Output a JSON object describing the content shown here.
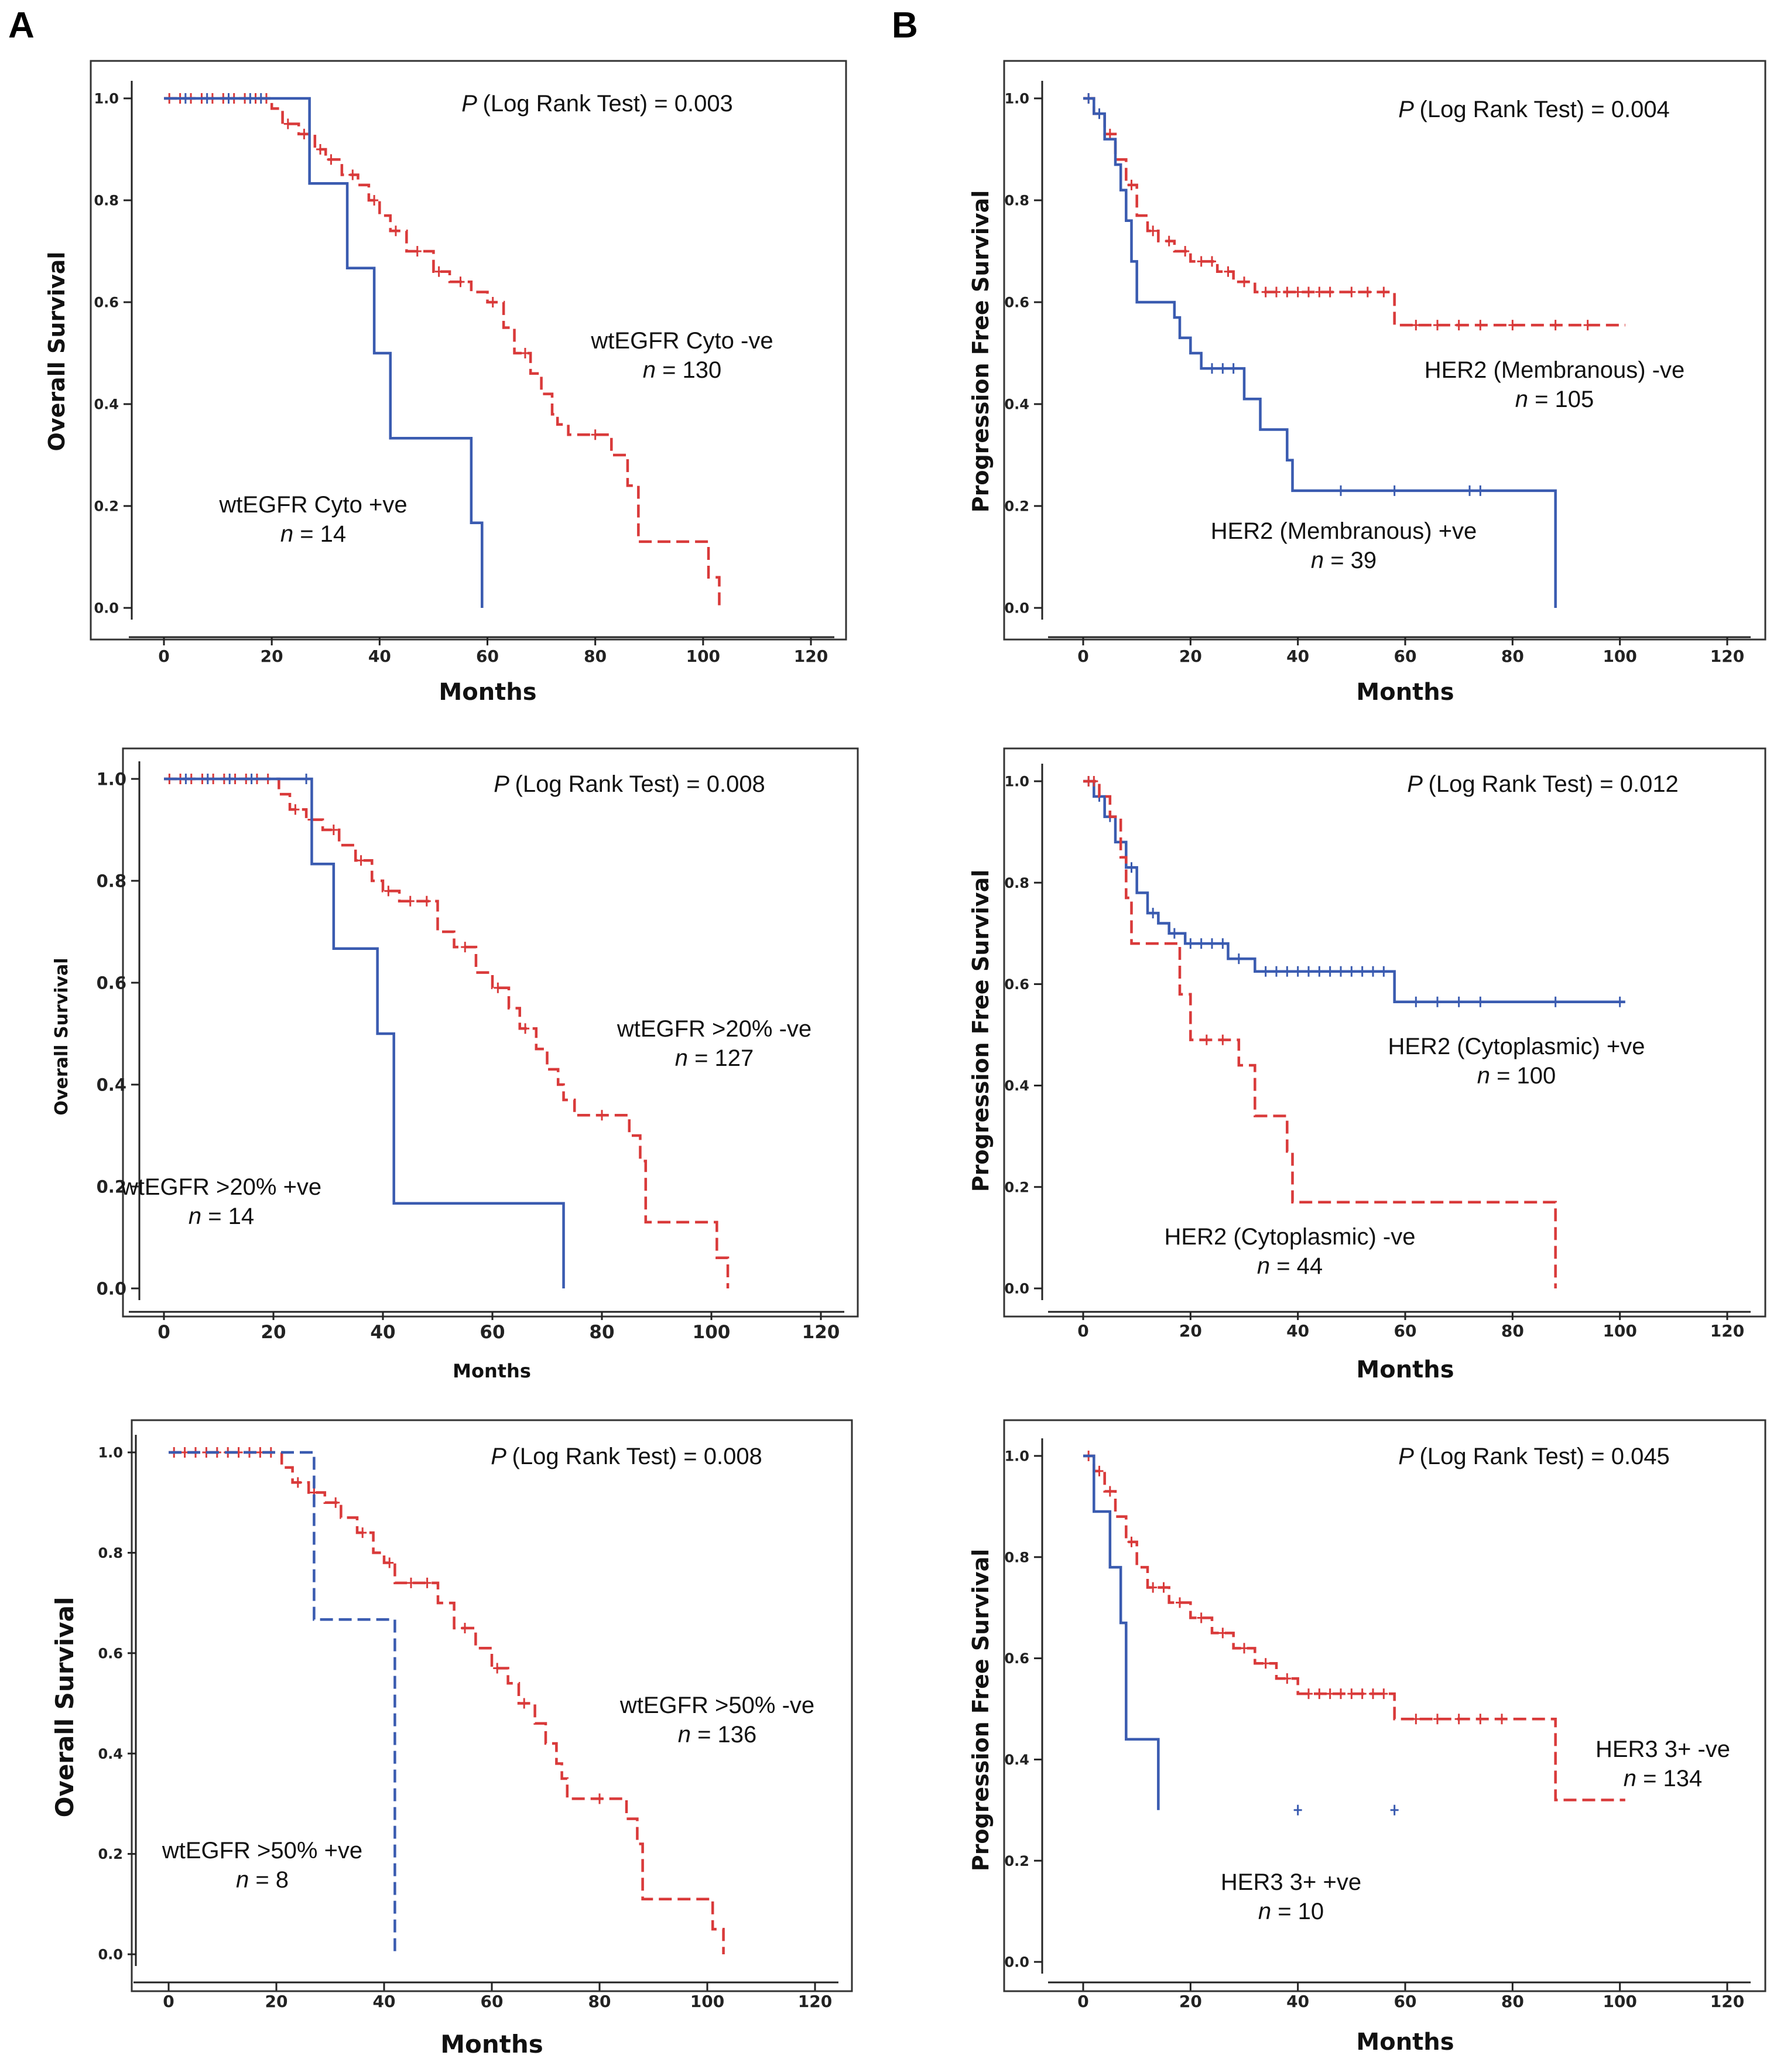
{
  "figure": {
    "panel_letters": [
      "A",
      "B"
    ],
    "colors": {
      "red": "#D93A3A",
      "blue": "#3A5BB0"
    }
  },
  "chart_data": [
    {
      "type": "line",
      "subtype": "kaplan-meier",
      "xlabel": "Months",
      "ylabel": "Overall Survival",
      "xlim": [
        0,
        120
      ],
      "ylim": [
        0,
        1
      ],
      "xticks": [
        "0",
        "20",
        "40",
        "60",
        "80",
        "100",
        "120"
      ],
      "yticks": [
        "0.0",
        "0.2",
        "0.4",
        "0.6",
        "0.8",
        "1.0"
      ],
      "pvalue": {
        "p": "P",
        "text": "(Log Rank Test) = 0.003"
      },
      "series": [
        {
          "name": "wtEGFR Cyto -ve",
          "n_label": "n = 130",
          "color": "red",
          "dashed": true,
          "x": [
            0,
            20,
            22,
            25,
            28,
            30,
            33,
            36,
            38,
            40,
            42,
            45,
            50,
            53,
            57,
            60,
            63,
            65,
            68,
            70,
            72,
            73,
            75,
            83,
            86,
            88,
            101,
            103
          ],
          "y": [
            1.0,
            0.98,
            0.95,
            0.93,
            0.9,
            0.88,
            0.85,
            0.83,
            0.8,
            0.77,
            0.74,
            0.7,
            0.66,
            0.64,
            0.62,
            0.6,
            0.55,
            0.5,
            0.46,
            0.42,
            0.38,
            0.36,
            0.34,
            0.3,
            0.24,
            0.13,
            0.06,
            0.0
          ],
          "censor_x": [
            1,
            3,
            5,
            7,
            9,
            11,
            13,
            15,
            17,
            19,
            23,
            26,
            29,
            31,
            35,
            39,
            43,
            47,
            51,
            55,
            61,
            67,
            80
          ]
        },
        {
          "name": "wtEGFR Cyto +ve",
          "n_label": "n = 14",
          "color": "blue",
          "dashed": false,
          "x": [
            0,
            27,
            34,
            39,
            42,
            57,
            59
          ],
          "y": [
            1.0,
            0.833,
            0.667,
            0.5,
            0.333,
            0.167,
            0.0
          ],
          "censor_x": [
            4,
            8,
            12,
            16,
            18
          ]
        }
      ]
    },
    {
      "type": "line",
      "subtype": "kaplan-meier",
      "xlabel": "Months",
      "ylabel": "Progression Free Survival",
      "xlim": [
        0,
        120
      ],
      "ylim": [
        0,
        1
      ],
      "xticks": [
        "0",
        "20",
        "40",
        "60",
        "80",
        "100",
        "120"
      ],
      "yticks": [
        "0.0",
        "0.2",
        "0.4",
        "0.6",
        "0.8",
        "1.0"
      ],
      "pvalue": {
        "p": "P",
        "text": "(Log Rank Test) = 0.004"
      },
      "series": [
        {
          "name": "HER2 (Membranous) -ve",
          "n_label": "n = 105",
          "color": "red",
          "dashed": true,
          "x": [
            0,
            2,
            4,
            6,
            8,
            10,
            12,
            14,
            17,
            20,
            25,
            28,
            32,
            58,
            101
          ],
          "y": [
            1.0,
            0.97,
            0.93,
            0.88,
            0.83,
            0.77,
            0.74,
            0.72,
            0.7,
            0.68,
            0.66,
            0.64,
            0.62,
            0.555,
            0.555
          ],
          "censor_x": [
            1,
            3,
            5,
            9,
            13,
            16,
            19,
            22,
            24,
            27,
            30,
            34,
            36,
            38,
            40,
            42,
            44,
            46,
            50,
            53,
            56,
            62,
            66,
            70,
            74,
            80,
            88,
            94
          ]
        },
        {
          "name": "HER2 (Membranous) +ve",
          "n_label": "n = 39",
          "color": "blue",
          "dashed": false,
          "x": [
            0,
            2,
            4,
            6,
            7,
            8,
            9,
            10,
            17,
            18,
            20,
            22,
            30,
            33,
            38,
            39,
            88
          ],
          "y": [
            1.0,
            0.97,
            0.92,
            0.87,
            0.82,
            0.76,
            0.68,
            0.6,
            0.57,
            0.53,
            0.5,
            0.47,
            0.41,
            0.35,
            0.29,
            0.23,
            0.0
          ],
          "censor_x": [
            1,
            3,
            24,
            26,
            28,
            48,
            58,
            72,
            74
          ]
        }
      ]
    },
    {
      "type": "line",
      "subtype": "kaplan-meier",
      "xlabel": "Months",
      "ylabel": "Overall Survival",
      "xlim": [
        0,
        120
      ],
      "ylim": [
        0,
        1
      ],
      "xticks": [
        "0",
        "20",
        "40",
        "60",
        "80",
        "100",
        "120"
      ],
      "yticks": [
        "0.0",
        "0.2",
        "0.4",
        "0.6",
        "0.8",
        "1.0"
      ],
      "pvalue": {
        "p": "P",
        "text": "(Log Rank Test) = 0.008"
      },
      "series": [
        {
          "name": "wtEGFR >20% -ve",
          "n_label": "n = 127",
          "color": "red",
          "dashed": true,
          "x": [
            0,
            21,
            23,
            26,
            29,
            32,
            35,
            38,
            40,
            43,
            50,
            53,
            57,
            60,
            63,
            65,
            68,
            70,
            72,
            73,
            75,
            85,
            87,
            88,
            101,
            103
          ],
          "y": [
            1.0,
            0.97,
            0.94,
            0.92,
            0.9,
            0.87,
            0.84,
            0.8,
            0.78,
            0.76,
            0.7,
            0.67,
            0.62,
            0.59,
            0.55,
            0.51,
            0.47,
            0.43,
            0.4,
            0.37,
            0.34,
            0.3,
            0.25,
            0.13,
            0.06,
            0.0
          ],
          "censor_x": [
            1,
            3,
            5,
            7,
            9,
            11,
            13,
            15,
            17,
            19,
            24,
            27,
            31,
            36,
            41,
            45,
            48,
            55,
            61,
            66,
            80
          ]
        },
        {
          "name": "wtEGFR >20% +ve",
          "n_label": "n = 14",
          "color": "blue",
          "dashed": false,
          "x": [
            0,
            27,
            31,
            39,
            42,
            73
          ],
          "y": [
            1.0,
            0.833,
            0.667,
            0.5,
            0.167,
            0.0
          ],
          "censor_x": [
            4,
            8,
            12,
            16,
            26
          ]
        }
      ]
    },
    {
      "type": "line",
      "subtype": "kaplan-meier",
      "xlabel": "Months",
      "ylabel": "Progression Free Survival",
      "xlim": [
        0,
        120
      ],
      "ylim": [
        0,
        1
      ],
      "xticks": [
        "0",
        "20",
        "40",
        "60",
        "80",
        "100",
        "120"
      ],
      "yticks": [
        "0.0",
        "0.2",
        "0.4",
        "0.6",
        "0.8",
        "1.0"
      ],
      "pvalue": {
        "p": "P",
        "text": "(Log Rank Test) = 0.012"
      },
      "series": [
        {
          "name": "HER2 (Cytoplasmic) +ve",
          "n_label": "n = 100",
          "color": "blue",
          "dashed": false,
          "x": [
            0,
            2,
            4,
            6,
            8,
            10,
            12,
            14,
            16,
            19,
            27,
            32,
            58,
            101
          ],
          "y": [
            1.0,
            0.97,
            0.93,
            0.88,
            0.83,
            0.78,
            0.74,
            0.72,
            0.7,
            0.68,
            0.65,
            0.625,
            0.565,
            0.565
          ],
          "censor_x": [
            1,
            3,
            5,
            9,
            13,
            17,
            20,
            22,
            24,
            26,
            29,
            34,
            36,
            38,
            40,
            42,
            44,
            46,
            48,
            50,
            52,
            54,
            56,
            62,
            66,
            70,
            74,
            88,
            100
          ]
        },
        {
          "name": "HER2 (Cytoplasmic) -ve",
          "n_label": "n = 44",
          "color": "red",
          "dashed": true,
          "x": [
            0,
            3,
            5,
            7,
            8,
            9,
            18,
            20,
            29,
            32,
            38,
            39,
            88
          ],
          "y": [
            1.0,
            0.97,
            0.93,
            0.85,
            0.77,
            0.68,
            0.58,
            0.49,
            0.44,
            0.34,
            0.27,
            0.17,
            0.0
          ],
          "censor_x": [
            1,
            2,
            23,
            26
          ]
        }
      ]
    },
    {
      "type": "line",
      "subtype": "kaplan-meier",
      "xlabel": "Months",
      "ylabel": "Overall Survival",
      "xlim": [
        0,
        120
      ],
      "ylim": [
        0,
        1
      ],
      "xticks": [
        "0",
        "20",
        "40",
        "60",
        "80",
        "100",
        "120"
      ],
      "yticks": [
        "0.0",
        "0.2",
        "0.4",
        "0.6",
        "0.8",
        "1.0"
      ],
      "pvalue": {
        "p": "P",
        "text": "(Log Rank Test) = 0.008"
      },
      "series": [
        {
          "name": "wtEGFR >50% -ve",
          "n_label": "n = 136",
          "color": "red",
          "dashed": true,
          "x": [
            0,
            21,
            23,
            26,
            29,
            32,
            35,
            38,
            40,
            42,
            50,
            53,
            57,
            60,
            63,
            65,
            68,
            70,
            72,
            73,
            74,
            85,
            87,
            88,
            101,
            103
          ],
          "y": [
            1.0,
            0.97,
            0.94,
            0.92,
            0.9,
            0.87,
            0.84,
            0.8,
            0.78,
            0.74,
            0.7,
            0.65,
            0.61,
            0.57,
            0.54,
            0.5,
            0.46,
            0.42,
            0.38,
            0.35,
            0.31,
            0.27,
            0.22,
            0.11,
            0.05,
            0.0
          ],
          "censor_x": [
            1,
            3,
            5,
            7,
            9,
            11,
            13,
            15,
            17,
            19,
            24,
            27,
            31,
            36,
            41,
            45,
            48,
            55,
            61,
            66,
            80
          ]
        },
        {
          "name": "wtEGFR >50% +ve",
          "n_label": "n = 8",
          "color": "blue",
          "dashed": true,
          "x": [
            0,
            27,
            42
          ],
          "y": [
            1.0,
            0.667,
            0.0
          ],
          "censor_x": []
        }
      ]
    },
    {
      "type": "line",
      "subtype": "kaplan-meier",
      "xlabel": "Months",
      "ylabel": "Progression Free Survival",
      "xlim": [
        0,
        120
      ],
      "ylim": [
        0,
        1
      ],
      "xticks": [
        "0",
        "20",
        "40",
        "60",
        "80",
        "100",
        "120"
      ],
      "yticks": [
        "0.0",
        "0.2",
        "0.4",
        "0.6",
        "0.8",
        "1.0"
      ],
      "pvalue": {
        "p": "P",
        "text": "(Log Rank Test) = 0.045"
      },
      "series": [
        {
          "name": "HER3 3+ -ve",
          "n_label": "n = 134",
          "color": "red",
          "dashed": true,
          "x": [
            0,
            2,
            4,
            6,
            8,
            10,
            12,
            16,
            20,
            24,
            28,
            32,
            36,
            40,
            58,
            88,
            101
          ],
          "y": [
            1.0,
            0.97,
            0.93,
            0.88,
            0.83,
            0.78,
            0.74,
            0.71,
            0.68,
            0.65,
            0.62,
            0.59,
            0.56,
            0.53,
            0.48,
            0.32,
            0.32
          ],
          "censor_x": [
            1,
            3,
            5,
            9,
            13,
            15,
            18,
            22,
            26,
            30,
            34,
            38,
            42,
            44,
            46,
            48,
            50,
            52,
            54,
            56,
            62,
            66,
            70,
            74,
            78
          ]
        },
        {
          "name": "HER3 3+ +ve",
          "n_label": "n = 10",
          "color": "blue",
          "dashed": false,
          "x": [
            0,
            2,
            5,
            7,
            8,
            14
          ],
          "y": [
            1.0,
            0.89,
            0.78,
            0.67,
            0.44,
            0.3
          ],
          "censor_x": [
            40,
            58
          ]
        }
      ]
    }
  ]
}
